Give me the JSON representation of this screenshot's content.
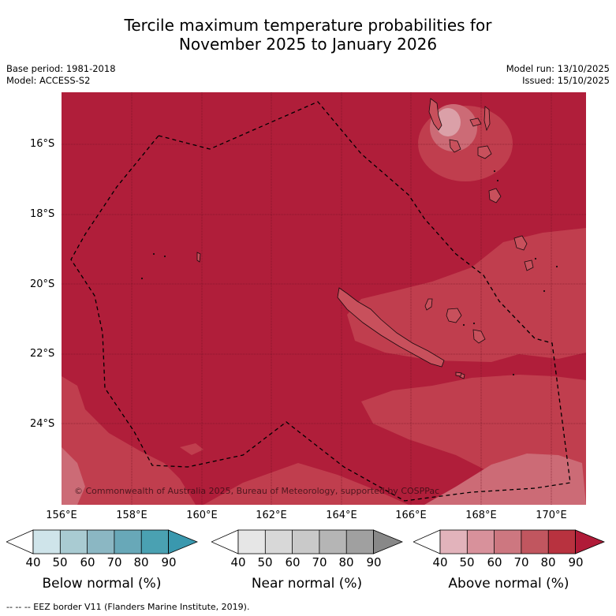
{
  "title": {
    "line1": "Tercile maximum temperature probabilities for",
    "line2": "November 2025 to January 2026"
  },
  "meta_left": {
    "base_period": "Base period: 1981-2018",
    "model": "Model: ACCESS-S2"
  },
  "meta_right": {
    "model_run": "Model run: 13/10/2025",
    "issued": "Issued: 15/10/2025"
  },
  "axes": {
    "lat_labels": [
      "16°S",
      "18°S",
      "20°S",
      "22°S",
      "24°S"
    ],
    "lon_labels": [
      "156°E",
      "158°E",
      "160°E",
      "162°E",
      "164°E",
      "166°E",
      "168°E",
      "170°E"
    ],
    "lon_range": [
      155.9,
      170.9
    ],
    "lat_range": [
      -14.8,
      -26.6
    ]
  },
  "copyright": "© Commonwealth of Australia 2025, Bureau of Meteorology, supported by COSPPac",
  "colorbars": [
    {
      "title": "Below normal (%)",
      "ticks": [
        "40",
        "50",
        "60",
        "70",
        "80",
        "90"
      ],
      "colors": [
        "#ffffff",
        "#cfe4ea",
        "#a9cbd2",
        "#8bb7c3",
        "#68a8b8",
        "#4aa1b2",
        "#3a98ae"
      ]
    },
    {
      "title": "Near normal (%)",
      "ticks": [
        "40",
        "50",
        "60",
        "70",
        "80",
        "90"
      ],
      "colors": [
        "#ffffff",
        "#e6e6e6",
        "#d8d8d8",
        "#c9c9c9",
        "#b5b5b5",
        "#a0a0a0",
        "#888888"
      ]
    },
    {
      "title": "Above normal (%)",
      "ticks": [
        "40",
        "50",
        "60",
        "70",
        "80",
        "90"
      ],
      "colors": [
        "#ffffff",
        "#e2b3bb",
        "#d8919b",
        "#cd7780",
        "#c1565f",
        "#b8323f",
        "#b01b38"
      ]
    }
  ],
  "map_colors": {
    "base": "#b01e3a",
    "band70": "#c03e4e",
    "band60": "#cc6b76",
    "band50": "#dba0a8",
    "land": "#c8505c"
  },
  "footnote": "--  --  -- EEZ border V11 (Flanders Marine Institute, 2019)."
}
